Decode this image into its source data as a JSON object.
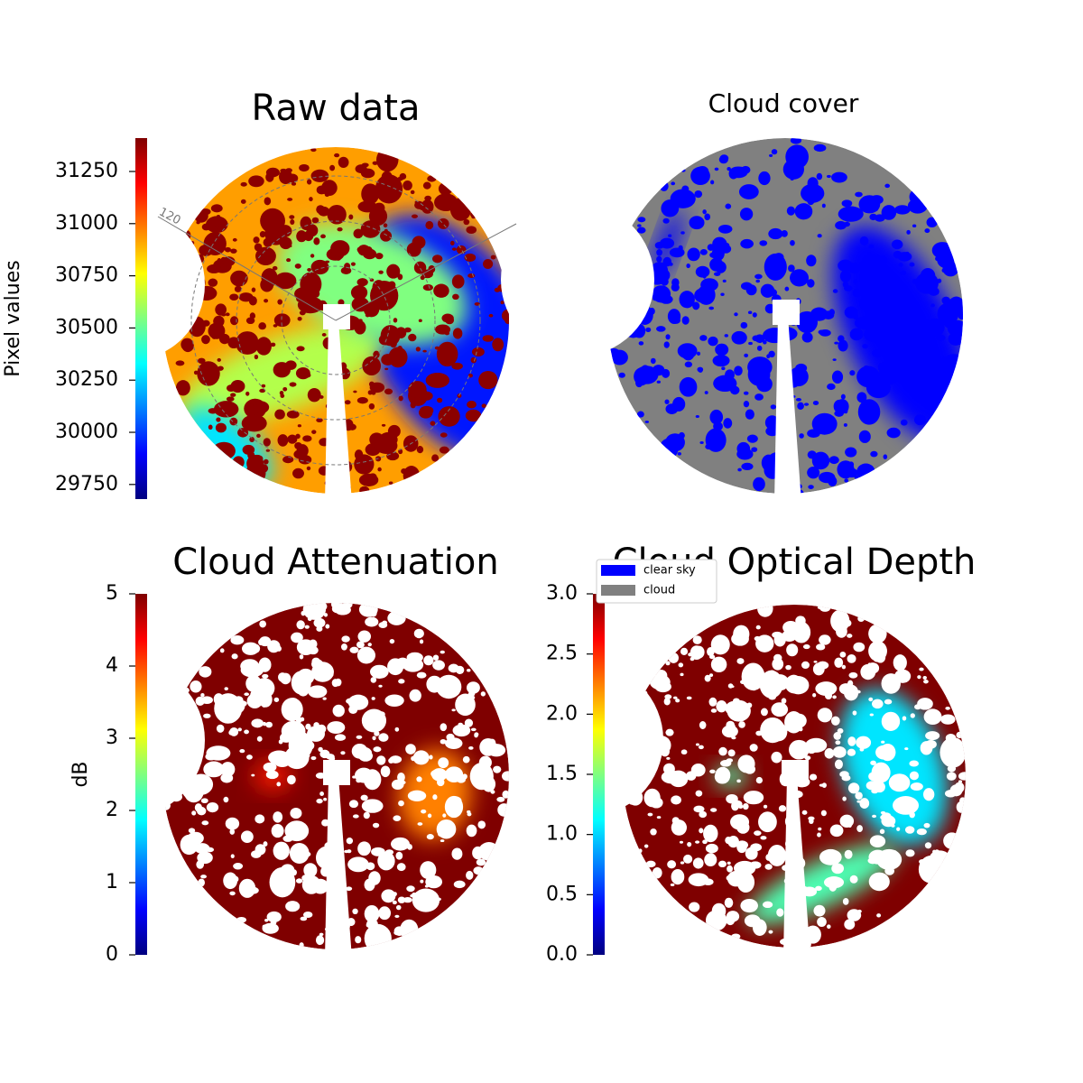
{
  "chart_data": [
    {
      "type": "image",
      "title": "Raw data",
      "colormap": "jet",
      "colorbar_label": "Pixel values",
      "clim": [
        29680,
        31410
      ],
      "cticks": [
        29750,
        30000,
        30250,
        30500,
        30750,
        31000,
        31250
      ],
      "annotations": [
        "120"
      ]
    },
    {
      "type": "mask",
      "title": "Cloud cover",
      "series": [
        {
          "name": "clear sky",
          "color": "#0000ff"
        },
        {
          "name": "cloud",
          "color": "#808080"
        }
      ]
    },
    {
      "type": "image",
      "title": "Cloud Attenuation",
      "colormap": "jet",
      "colorbar_label": "dB",
      "clim": [
        0,
        5
      ],
      "cticks": [
        0,
        1,
        2,
        3,
        4,
        5
      ]
    },
    {
      "type": "image",
      "title": "Cloud Optical Depth",
      "colormap": "jet",
      "clim": [
        0,
        3
      ],
      "cticks": [
        {
          "value": 0,
          "label": "0.0"
        },
        {
          "value": 0.5,
          "label": "0.5"
        },
        {
          "value": 1,
          "label": "1.0"
        },
        {
          "value": 1.5,
          "label": "1.5"
        },
        {
          "value": 2,
          "label": "2.0"
        },
        {
          "value": 2.5,
          "label": "2.5"
        },
        {
          "value": 3,
          "label": "3.0"
        }
      ]
    }
  ]
}
